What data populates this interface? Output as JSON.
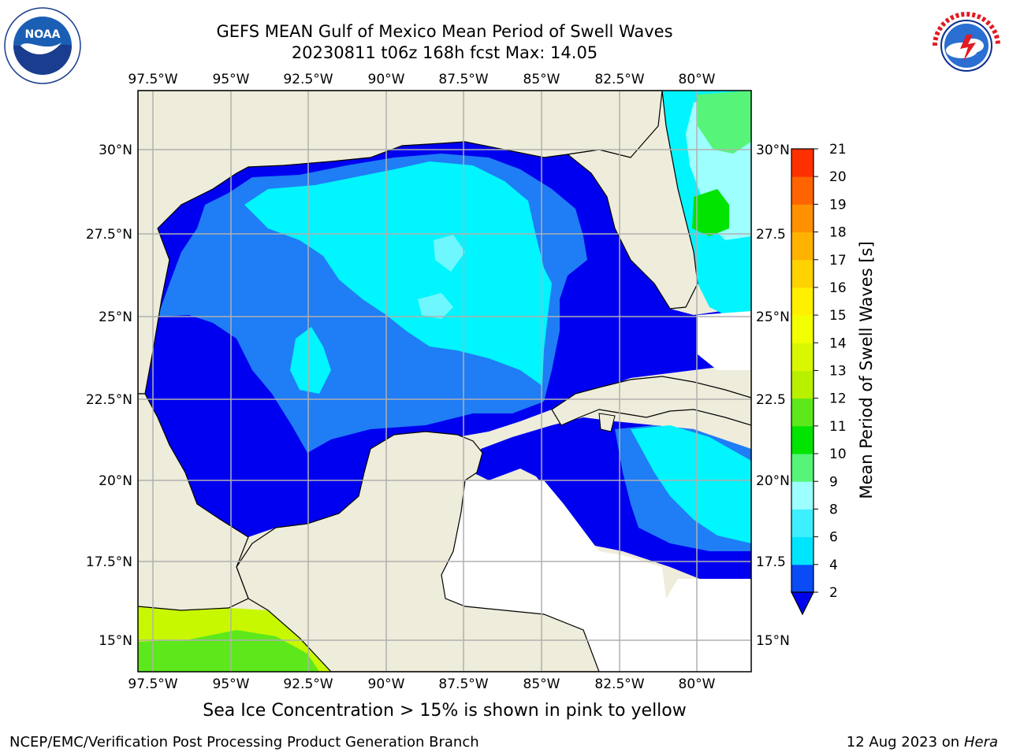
{
  "header": {
    "title_line1": "GEFS MEAN Gulf of Mexico Mean Period of Swell Waves",
    "title_line2": "20230811 t06z 168h fcst   Max: 14.05"
  },
  "logos": {
    "noaa_text": "NOAA",
    "noaa_ring": "NATIONAL OCEANIC AND ATMOSPHERIC ADMINISTRATION · U.S. DEPARTMENT OF COMMERCE",
    "nws_ring": "NATIONAL WEATHER SERVICE"
  },
  "map": {
    "lon_labels": [
      "97.5°W",
      "95°W",
      "92.5°W",
      "90°W",
      "87.5°W",
      "85°W",
      "82.5°W",
      "80°W"
    ],
    "lat_labels_left": [
      "30°N",
      "27.5°N",
      "25°N",
      "22.5°N",
      "20°N",
      "17.5°N",
      "15°N"
    ],
    "lat_labels_right": [
      "30°N",
      "27.5",
      "25°N",
      "22.5",
      "20°N",
      "17.5",
      "15°N"
    ],
    "colors": {
      "land": "#eeecda",
      "grid": "#b0b0b0",
      "coast": "#000000"
    }
  },
  "colorbar": {
    "label": "Mean Period of Swell Waves [s]",
    "ticks": [
      "2",
      "4",
      "6",
      "8",
      "9",
      "10",
      "11",
      "12",
      "13",
      "14",
      "15",
      "16",
      "17",
      "18",
      "19",
      "20",
      "21"
    ],
    "colors": [
      "#0a4bf5",
      "#00e5ff",
      "#3ef0ff",
      "#9effff",
      "#56f579",
      "#00e400",
      "#5de81c",
      "#b8f000",
      "#d9f800",
      "#f2ff00",
      "#fff000",
      "#ffd200",
      "#ffb300",
      "#ff9000",
      "#ff6400",
      "#ff3000"
    ],
    "extend_color": "#0000f0"
  },
  "footer": {
    "note": "Sea Ice Concentration > 15% is shown in pink to yellow",
    "left_credit": "NCEP/EMC/Verification Post Processing Product Generation Branch",
    "right_date": "12 Aug 2023 on",
    "right_host": "Hera"
  }
}
